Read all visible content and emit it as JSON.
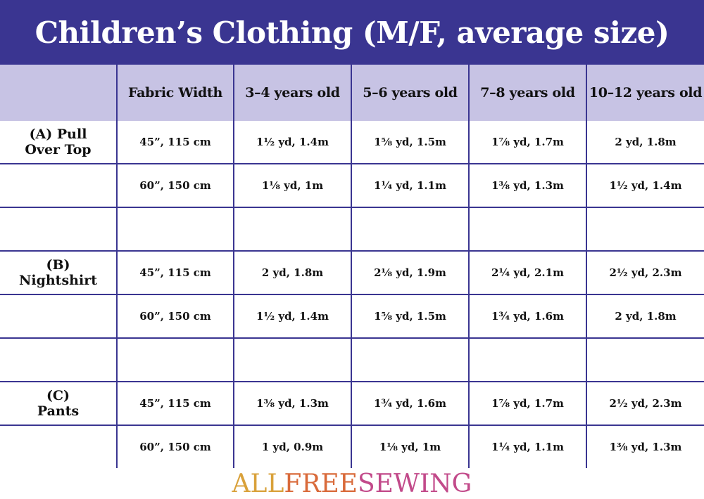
{
  "title": "Children’s Clothing (M/F, average size)",
  "headers": [
    "",
    "Fabric Width",
    "3–4 years old",
    "5–6 years old",
    "7–8 years old",
    "10–12 years old"
  ],
  "rows": [
    {
      "garment": [
        "(A) Pull",
        "Over Top"
      ],
      "cells": [
        "45”, 115 cm",
        "1½ yd, 1.4m",
        "1⅝ yd, 1.5m",
        "1⅞ yd, 1.7m",
        "2 yd, 1.8m"
      ]
    },
    {
      "garment": [],
      "cells": [
        "60”, 150 cm",
        "1⅛ yd, 1m",
        "1¼ yd, 1.1m",
        "1⅜ yd, 1.3m",
        "1½ yd, 1.4m"
      ]
    },
    {
      "garment": [],
      "cells": [
        "",
        "",
        "",
        "",
        ""
      ]
    },
    {
      "garment": [
        "(B)",
        "Nightshirt"
      ],
      "cells": [
        "45”, 115 cm",
        "2 yd, 1.8m",
        "2⅛ yd, 1.9m",
        "2¼ yd, 2.1m",
        "2½ yd, 2.3m"
      ]
    },
    {
      "garment": [],
      "cells": [
        "60”, 150 cm",
        "1½ yd, 1.4m",
        "1⅝ yd, 1.5m",
        "1¾ yd, 1.6m",
        "2 yd, 1.8m"
      ]
    },
    {
      "garment": [],
      "cells": [
        "",
        "",
        "",
        "",
        ""
      ]
    },
    {
      "garment": [
        "(C)",
        "Pants"
      ],
      "cells": [
        "45”, 115 cm",
        "1⅜ yd, 1.3m",
        "1¾ yd, 1.6m",
        "1⅞ yd, 1.7m",
        "2½ yd, 2.3m"
      ]
    },
    {
      "garment": [],
      "cells": [
        "60”, 150 cm",
        "1 yd, 0.9m",
        "1⅛ yd, 1m",
        "1¼ yd, 1.1m",
        "1⅜ yd, 1.3m"
      ]
    }
  ],
  "logo": {
    "part1": "ALL",
    "part2": "FREE",
    "part3": "SEWING"
  },
  "colors": {
    "header_bg": "#3a3591",
    "subheader_bg": "#c7c3e4",
    "grid": "#3a3591"
  }
}
